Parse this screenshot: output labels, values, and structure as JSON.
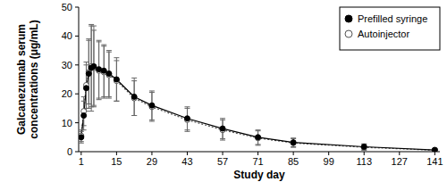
{
  "chart_data": {
    "type": "line",
    "x_label": "Study day",
    "y_label": "Galcanezumab serum concentrations (μg/mL)",
    "x": [
      1,
      2,
      3,
      4,
      5,
      6,
      8,
      10,
      12,
      15,
      22,
      29,
      43,
      57,
      71,
      85,
      113,
      141
    ],
    "series": [
      {
        "name": "Prefilled syringe",
        "color": "#000000",
        "marker": "filled-circle",
        "line_style": "solid",
        "values": [
          5,
          12.5,
          22,
          27,
          29,
          29.5,
          28.5,
          28,
          27,
          25,
          19,
          16,
          11.5,
          8,
          5,
          3.2,
          1.7,
          0.6
        ],
        "errors": [
          2,
          5,
          8,
          12,
          15,
          14,
          10,
          9,
          8,
          7.5,
          6.5,
          5,
          4,
          3.5,
          2.5,
          1.5,
          1,
          0.5
        ]
      },
      {
        "name": "Autoinjector",
        "color": "#555555",
        "marker": "open-circle",
        "line_style": "dotted",
        "values": [
          5.5,
          14,
          23,
          27.5,
          29.5,
          29,
          28,
          27.5,
          26.5,
          24.5,
          18.5,
          15.5,
          11,
          7.5,
          4.7,
          3,
          1.5,
          0.5
        ],
        "errors": [
          2,
          5,
          8,
          11,
          14,
          13,
          10,
          9,
          8,
          7,
          6,
          5,
          4,
          3.5,
          2.5,
          1.5,
          1,
          0.5
        ]
      }
    ],
    "xlim": [
      0,
      143
    ],
    "xticks": [
      1,
      15,
      29,
      43,
      57,
      71,
      85,
      99,
      113,
      127,
      141
    ],
    "ylim": [
      0,
      50
    ],
    "yticks": [
      0,
      10,
      20,
      30,
      40,
      50
    ],
    "grid": false,
    "legend": "top-right"
  }
}
